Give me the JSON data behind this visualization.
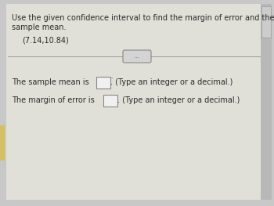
{
  "bg_color": "#c8c8c8",
  "panel_color": "#e0e0d8",
  "title_text1": "Use the given confidence interval to find the margin of error and the",
  "title_text2": "sample mean.",
  "interval_text": "(7.14,10.84)",
  "dots_text": "...",
  "line1_pre": "The sample mean is",
  "line1_post": ". (Type an integer or a decimal.)",
  "line2_pre": "The margin of error is",
  "line2_post": ". (Type an integer or a decimal.)",
  "font_size": 7.0,
  "text_color": "#2a2a2a",
  "box_color": "#f0f0f0",
  "box_border": "#888888",
  "separator_color": "#999999",
  "pill_color": "#d4d4d4",
  "pill_border": "#888888",
  "scroll_color": "#b0b0b0",
  "left_bar_color": "#d4c060"
}
